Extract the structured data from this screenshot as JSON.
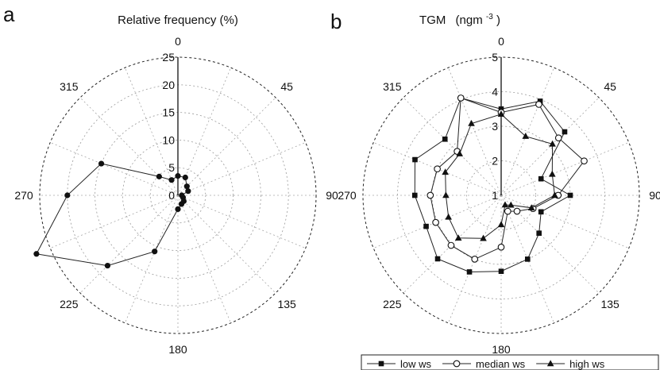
{
  "chart_data": [
    {
      "panel": "a",
      "type": "line",
      "coordinate_system": "polar",
      "title": "Relative frequency (%)",
      "direction_labels": [
        "0",
        "45",
        "90",
        "135",
        "180",
        "225",
        "270",
        "315"
      ],
      "radial_ticks": [
        "0",
        "5",
        "10",
        "15",
        "20",
        "25"
      ],
      "rlim": [
        0,
        25
      ],
      "grid": true,
      "series": [
        {
          "marker": "filled-circle",
          "color": "#111111",
          "points": [
            {
              "theta": 0,
              "r": 3.5
            },
            {
              "theta": 22.5,
              "r": 3.5
            },
            {
              "theta": 45,
              "r": 2.3
            },
            {
              "theta": 67.5,
              "r": 2.0
            },
            {
              "theta": 90,
              "r": 0.7
            },
            {
              "theta": 112.5,
              "r": 1.0
            },
            {
              "theta": 135,
              "r": 1.5
            },
            {
              "theta": 157.5,
              "r": 1.7
            },
            {
              "theta": 180,
              "r": 2.5
            },
            {
              "theta": 202.5,
              "r": 11.0
            },
            {
              "theta": 225,
              "r": 18.0
            },
            {
              "theta": 247.5,
              "r": 27.7
            },
            {
              "theta": 270,
              "r": 20.0
            },
            {
              "theta": 292.5,
              "r": 15.0
            },
            {
              "theta": 315,
              "r": 4.8
            },
            {
              "theta": 337.5,
              "r": 3.0
            }
          ]
        }
      ]
    },
    {
      "panel": "b",
      "type": "line",
      "coordinate_system": "polar",
      "title": "TGM",
      "title_unit": "(ngm",
      "title_unit_sup": "-3",
      "title_unit_close": ")",
      "direction_labels": [
        "0",
        "45",
        "90",
        "135",
        "180",
        "225",
        "270",
        "315"
      ],
      "radial_ticks": [
        "1",
        "2",
        "3",
        "4",
        "5"
      ],
      "rlim": [
        1,
        5
      ],
      "grid": true,
      "legend_position": "bottom",
      "series": [
        {
          "name": "low ws",
          "marker": "filled-square",
          "points": [
            {
              "theta": 0,
              "r": 3.5
            },
            {
              "theta": 22.5,
              "r": 3.95
            },
            {
              "theta": 45,
              "r": 3.6
            },
            {
              "theta": 67.5,
              "r": 2.25
            },
            {
              "theta": 90,
              "r": 3.0
            },
            {
              "theta": 112.5,
              "r": 2.25
            },
            {
              "theta": 135,
              "r": 2.55
            },
            {
              "theta": 157.5,
              "r": 3.0
            },
            {
              "theta": 180,
              "r": 3.2
            },
            {
              "theta": 202.5,
              "r": 3.4
            },
            {
              "theta": 225,
              "r": 3.6
            },
            {
              "theta": 247.5,
              "r": 3.35
            },
            {
              "theta": 270,
              "r": 3.5
            },
            {
              "theta": 292.5,
              "r": 3.7
            },
            {
              "theta": 315,
              "r": 3.3
            },
            {
              "theta": 337.5,
              "r": 4.05
            }
          ]
        },
        {
          "name": "median ws",
          "marker": "open-circle",
          "points": [
            {
              "theta": 0,
              "r": 3.4
            },
            {
              "theta": 22.5,
              "r": 3.85
            },
            {
              "theta": 45,
              "r": 3.35
            },
            {
              "theta": 67.5,
              "r": 3.6
            },
            {
              "theta": 90,
              "r": 2.65
            },
            {
              "theta": 112.5,
              "r": 2.0
            },
            {
              "theta": 135,
              "r": 1.65
            },
            {
              "theta": 157.5,
              "r": 1.5
            },
            {
              "theta": 180,
              "r": 2.5
            },
            {
              "theta": 202.5,
              "r": 3.0
            },
            {
              "theta": 225,
              "r": 3.05
            },
            {
              "theta": 247.5,
              "r": 3.05
            },
            {
              "theta": 270,
              "r": 3.05
            },
            {
              "theta": 292.5,
              "r": 3.0
            },
            {
              "theta": 315,
              "r": 2.8
            },
            {
              "theta": 337.5,
              "r": 4.05
            }
          ]
        },
        {
          "name": "high ws",
          "marker": "filled-triangle",
          "points": [
            {
              "theta": 0,
              "r": 3.35
            },
            {
              "theta": 22.5,
              "r": 2.85
            },
            {
              "theta": 45,
              "r": 3.1
            },
            {
              "theta": 67.5,
              "r": 2.6
            },
            {
              "theta": 90,
              "r": 2.55
            },
            {
              "theta": 112.5,
              "r": 1.95
            },
            {
              "theta": 135,
              "r": 1.4
            },
            {
              "theta": 157.5,
              "r": 1.3
            },
            {
              "theta": 180,
              "r": 1.85
            },
            {
              "theta": 202.5,
              "r": 2.35
            },
            {
              "theta": 225,
              "r": 2.75
            },
            {
              "theta": 247.5,
              "r": 2.65
            },
            {
              "theta": 270,
              "r": 2.6
            },
            {
              "theta": 292.5,
              "r": 2.75
            },
            {
              "theta": 315,
              "r": 2.7
            },
            {
              "theta": 337.5,
              "r": 3.25
            }
          ]
        }
      ]
    }
  ]
}
